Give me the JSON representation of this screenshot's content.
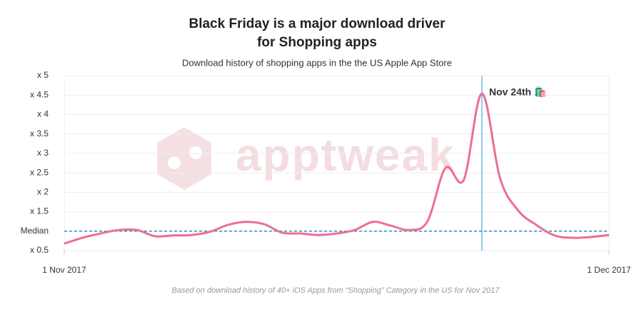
{
  "chart_data": {
    "type": "line",
    "title": [
      "Black Friday is a major download driver",
      "for Shopping apps"
    ],
    "subtitle": "Download history of shopping apps in the the US Apple App Store",
    "footnote": "Based on download history of 40+ iOS Apps from “Shopping” Category in the US for Nov 2017",
    "watermark": "apptweak",
    "x": [
      "2017-11-01",
      "2017-11-02",
      "2017-11-03",
      "2017-11-04",
      "2017-11-05",
      "2017-11-06",
      "2017-11-07",
      "2017-11-08",
      "2017-11-09",
      "2017-11-10",
      "2017-11-11",
      "2017-11-12",
      "2017-11-13",
      "2017-11-14",
      "2017-11-15",
      "2017-11-16",
      "2017-11-17",
      "2017-11-18",
      "2017-11-19",
      "2017-11-20",
      "2017-11-21",
      "2017-11-22",
      "2017-11-23",
      "2017-11-24",
      "2017-11-25",
      "2017-11-26",
      "2017-11-27",
      "2017-11-28",
      "2017-11-29",
      "2017-11-30",
      "2017-12-01"
    ],
    "series": [
      {
        "color": "#ec6f8f",
        "values": [
          0.68,
          0.83,
          0.94,
          1.03,
          1.03,
          0.87,
          0.89,
          0.9,
          0.98,
          1.16,
          1.24,
          1.18,
          0.96,
          0.94,
          0.9,
          0.94,
          1.03,
          1.24,
          1.14,
          1.03,
          1.25,
          2.63,
          2.32,
          4.54,
          2.36,
          1.53,
          1.16,
          0.89,
          0.83,
          0.85,
          0.9
        ]
      }
    ],
    "xlim": [
      "2017-11-01",
      "2017-12-01"
    ],
    "xticks": [
      {
        "value": "2017-11-01",
        "label": "1 Nov 2017"
      },
      {
        "value": "2017-12-01",
        "label": "1 Dec 2017"
      }
    ],
    "ylim": [
      0.5,
      5
    ],
    "yticks": [
      {
        "value": 0.5,
        "label": "x 0.5"
      },
      {
        "value": 1,
        "label": "Median"
      },
      {
        "value": 1.5,
        "label": "x 1.5"
      },
      {
        "value": 2,
        "label": "x 2"
      },
      {
        "value": 2.5,
        "label": "x 2.5"
      },
      {
        "value": 3,
        "label": "x 3"
      },
      {
        "value": 3.5,
        "label": "x 3.5"
      },
      {
        "value": 4,
        "label": "x 4"
      },
      {
        "value": 4.5,
        "label": "x 4.5"
      },
      {
        "value": 5,
        "label": "x 5"
      }
    ],
    "grid": true,
    "median_line": {
      "value": 1,
      "color": "#2a8fc7"
    },
    "annotation": {
      "x": "2017-11-24",
      "text": "Nov 24th 🛍️",
      "color": "#2a9bd6"
    }
  }
}
